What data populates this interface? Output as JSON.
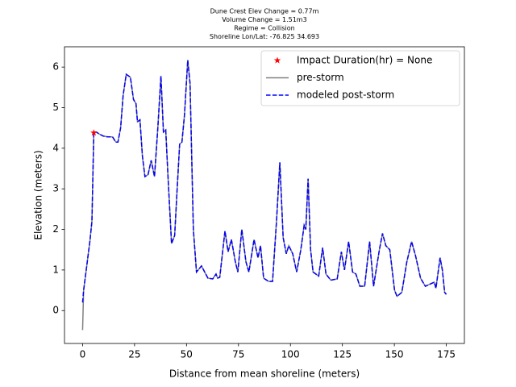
{
  "chart_data": {
    "type": "line",
    "title_lines": [
      "Dune Crest Elev Change = 0.77m",
      "Volume Change = 1.51m3",
      "Regime = Collision",
      "Shoreline Lon/Lat: -76.825 34.693"
    ],
    "xlabel": "Distance from mean shoreline (meters)",
    "ylabel": "Elevation (meters)",
    "xlim": [
      -8.7,
      183.7
    ],
    "ylim": [
      -0.81,
      6.5
    ],
    "xticks": [
      0,
      25,
      50,
      75,
      100,
      125,
      150,
      175
    ],
    "yticks": [
      0,
      1,
      2,
      3,
      4,
      5,
      6
    ],
    "legend": "upper right",
    "x": [
      0,
      0.5,
      1.5,
      2.5,
      3.5,
      4.5,
      5.4,
      6.6,
      8,
      10,
      12,
      14.4,
      16,
      17,
      18.3,
      19.5,
      21,
      23,
      24.5,
      25.7,
      26.4,
      27.6,
      28.8,
      30,
      31.5,
      33,
      34.6,
      36.2,
      37.7,
      38.9,
      40,
      41.2,
      42.8,
      44.3,
      45.5,
      46.7,
      47.8,
      49,
      50.6,
      51.7,
      53.3,
      54.8,
      57.2,
      60.3,
      62.6,
      64.2,
      65,
      66,
      68.5,
      70,
      71.6,
      73.5,
      74.7,
      76.6,
      78.6,
      80,
      82.5,
      84.4,
      85.6,
      87.1,
      89.5,
      91.4,
      93.3,
      94.9,
      96.5,
      98,
      99.2,
      101.1,
      103,
      105,
      106.6,
      107.4,
      108.5,
      109.7,
      110.9,
      113.6,
      115.5,
      117.1,
      119.4,
      122.5,
      124.5,
      126,
      128,
      129.9,
      131.5,
      133.4,
      135.7,
      138.1,
      140,
      142.8,
      144.3,
      145.9,
      147.8,
      150.1,
      151.3,
      153.6,
      156,
      158.3,
      160.2,
      162.6,
      164.9,
      169.2,
      170,
      172,
      173.1,
      174.2,
      175
    ],
    "series": [
      {
        "name": "Impact Duration(hr) = None",
        "kind": "scatter",
        "marker": "star",
        "color": "#ff0000",
        "x": [
          5.4
        ],
        "values": [
          4.38
        ]
      },
      {
        "name": "pre-storm",
        "kind": "line",
        "dash": "solid",
        "color": "#808080",
        "values": [
          -0.48,
          0.5,
          0.9,
          1.3,
          1.7,
          2.2,
          4.4,
          4.4,
          4.35,
          4.3,
          4.28,
          4.28,
          4.15,
          4.15,
          4.5,
          5.3,
          5.82,
          5.75,
          5.2,
          5.1,
          4.65,
          4.7,
          3.8,
          3.3,
          3.35,
          3.7,
          3.3,
          4.5,
          5.78,
          4.4,
          4.45,
          3.2,
          1.65,
          1.85,
          3.0,
          4.1,
          4.15,
          4.8,
          6.17,
          5.6,
          2.0,
          0.95,
          1.1,
          0.8,
          0.78,
          0.9,
          0.8,
          0.82,
          1.96,
          1.45,
          1.75,
          1.2,
          0.95,
          2.0,
          1.2,
          0.95,
          1.75,
          1.3,
          1.6,
          0.8,
          0.72,
          0.72,
          2.2,
          3.65,
          1.8,
          1.4,
          1.6,
          1.4,
          0.95,
          1.5,
          2.1,
          2.0,
          3.25,
          1.5,
          0.95,
          0.85,
          1.55,
          0.9,
          0.75,
          0.78,
          1.45,
          1.0,
          1.7,
          0.95,
          0.9,
          0.6,
          0.6,
          1.7,
          0.6,
          1.5,
          1.9,
          1.6,
          1.5,
          0.5,
          0.35,
          0.45,
          1.2,
          1.7,
          1.35,
          0.8,
          0.6,
          0.7,
          0.55,
          1.3,
          1.0,
          0.45,
          0.4
        ]
      },
      {
        "name": "modeled post-storm",
        "kind": "line",
        "dash": "dashed",
        "color": "#0000ff",
        "values": [
          0.2,
          0.5,
          0.9,
          1.3,
          1.7,
          2.2,
          4.4,
          4.4,
          4.35,
          4.3,
          4.28,
          4.28,
          4.15,
          4.15,
          4.5,
          5.3,
          5.82,
          5.75,
          5.2,
          5.1,
          4.65,
          4.7,
          3.8,
          3.3,
          3.35,
          3.7,
          3.3,
          4.5,
          5.78,
          4.4,
          4.45,
          3.2,
          1.65,
          1.85,
          3.0,
          4.1,
          4.15,
          4.8,
          6.17,
          5.6,
          2.0,
          0.95,
          1.1,
          0.8,
          0.78,
          0.9,
          0.8,
          0.82,
          1.96,
          1.45,
          1.75,
          1.2,
          0.95,
          2.0,
          1.2,
          0.95,
          1.75,
          1.3,
          1.6,
          0.8,
          0.72,
          0.72,
          2.2,
          3.65,
          1.8,
          1.4,
          1.6,
          1.4,
          0.95,
          1.5,
          2.1,
          2.0,
          3.25,
          1.5,
          0.95,
          0.85,
          1.55,
          0.9,
          0.75,
          0.78,
          1.45,
          1.0,
          1.7,
          0.95,
          0.9,
          0.6,
          0.6,
          1.7,
          0.6,
          1.5,
          1.9,
          1.6,
          1.5,
          0.5,
          0.35,
          0.45,
          1.2,
          1.7,
          1.35,
          0.8,
          0.6,
          0.7,
          0.55,
          1.3,
          1.0,
          0.45,
          0.4
        ]
      }
    ]
  }
}
